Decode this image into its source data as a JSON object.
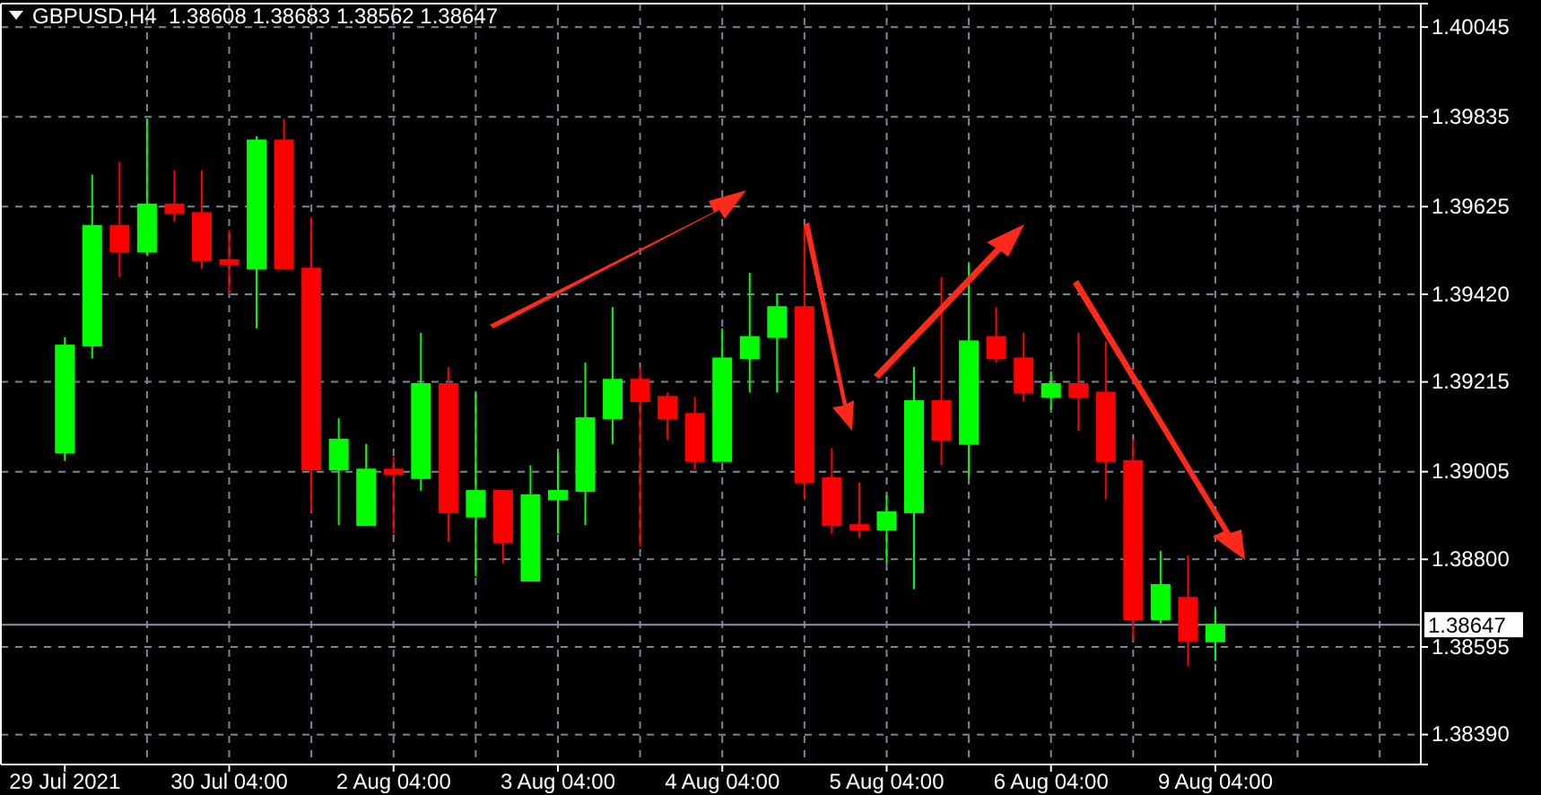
{
  "chart_data": {
    "type": "candlestick",
    "title": "GBPUSD,H4  1.38608 1.38683 1.38562 1.38647",
    "categories": [
      "29 Jul 2021",
      null,
      null,
      null,
      null,
      null,
      "30 Jul 04:00",
      null,
      null,
      null,
      null,
      null,
      "2 Aug 04:00",
      null,
      null,
      null,
      null,
      null,
      "3 Aug 04:00",
      null,
      null,
      null,
      null,
      null,
      "4 Aug 04:00",
      null,
      null,
      null,
      null,
      null,
      "5 Aug 04:00",
      null,
      null,
      null,
      null,
      null,
      "6 Aug 04:00",
      null,
      null,
      null,
      null,
      null,
      "9 Aug 04:00",
      null,
      null,
      null,
      null,
      null,
      null,
      null
    ],
    "ohlc": [
      [
        1.3905,
        1.3932,
        1.3903,
        1.393
      ],
      [
        1.393,
        1.397,
        1.3927,
        1.3958
      ],
      [
        1.3958,
        1.3973,
        1.3946,
        1.3952
      ],
      [
        1.3952,
        1.3983,
        1.3951,
        1.3963
      ],
      [
        1.3963,
        1.3971,
        1.3959,
        1.3961
      ],
      [
        1.3961,
        1.3971,
        1.3948,
        1.395
      ],
      [
        1.395,
        1.3957,
        1.3942,
        1.3949
      ],
      [
        1.3948,
        1.3979,
        1.3934,
        1.3978
      ],
      [
        1.3978,
        1.3983,
        1.3948,
        1.3948
      ],
      [
        1.3948,
        1.396,
        1.3891,
        1.3901
      ],
      [
        1.3901,
        1.3913,
        1.3888,
        1.3908
      ],
      [
        1.3888,
        1.3907,
        1.3888,
        1.3901
      ],
      [
        1.3901,
        1.3904,
        1.3886,
        1.39
      ],
      [
        1.3899,
        1.3933,
        1.3896,
        1.3921
      ],
      [
        1.3921,
        1.3925,
        1.3884,
        1.3891
      ],
      [
        1.389,
        1.3919,
        1.3876,
        1.3896
      ],
      [
        1.3896,
        1.3896,
        1.3879,
        1.3884
      ],
      [
        1.3875,
        1.3902,
        1.3875,
        1.3895
      ],
      [
        1.3894,
        1.3905,
        1.3886,
        1.3896
      ],
      [
        1.3896,
        1.3926,
        1.3888,
        1.3913
      ],
      [
        1.3913,
        1.3939,
        1.3907,
        1.3922
      ],
      [
        1.3922,
        1.3925,
        1.3883,
        1.3917
      ],
      [
        1.3918,
        1.3919,
        1.3908,
        1.3913
      ],
      [
        1.3914,
        1.3918,
        1.3901,
        1.3903
      ],
      [
        1.3903,
        1.3934,
        1.3903,
        1.3927
      ],
      [
        1.3927,
        1.3947,
        1.3919,
        1.3932
      ],
      [
        1.3932,
        1.3942,
        1.3919,
        1.3939
      ],
      [
        1.3939,
        1.3958,
        1.3894,
        1.3898
      ],
      [
        1.3899,
        1.3906,
        1.3886,
        1.3888
      ],
      [
        1.3888,
        1.3898,
        1.3885,
        1.3887
      ],
      [
        1.3887,
        1.3895,
        1.3879,
        1.3891
      ],
      [
        1.3891,
        1.3925,
        1.3873,
        1.3917
      ],
      [
        1.3917,
        1.3946,
        1.3902,
        1.3908
      ],
      [
        1.3907,
        1.3949,
        1.3899,
        1.3931
      ],
      [
        1.3932,
        1.3939,
        1.3926,
        1.3927
      ],
      [
        1.3927,
        1.3933,
        1.3917,
        1.3919
      ],
      [
        1.3918,
        1.3924,
        1.3915,
        1.3921
      ],
      [
        1.3921,
        1.3933,
        1.391,
        1.3918
      ],
      [
        1.3919,
        1.3931,
        1.3894,
        1.3903
      ],
      [
        1.3903,
        1.3908,
        1.3861,
        1.3866
      ],
      [
        1.3866,
        1.3882,
        1.3865,
        1.3874
      ],
      [
        1.3871,
        1.3881,
        1.3855,
        1.3861
      ],
      [
        1.38608,
        1.38683,
        1.38562,
        1.38647
      ],
      null,
      null,
      null,
      null,
      null,
      null,
      null
    ],
    "colors": [
      "#00ff00",
      "#00ff00",
      "#ff0000",
      "#00ff00",
      "#ff0000",
      "#ff0000",
      "#ff0000",
      "#00ff00",
      "#ff0000",
      "#ff0000",
      "#00ff00",
      "#00ff00",
      "#ff0000",
      "#00ff00",
      "#ff0000",
      "#00ff00",
      "#ff0000",
      "#00ff00",
      "#00ff00",
      "#00ff00",
      "#00ff00",
      "#ff0000",
      "#ff0000",
      "#ff0000",
      "#00ff00",
      "#00ff00",
      "#00ff00",
      "#ff0000",
      "#ff0000",
      "#ff0000",
      "#00ff00",
      "#00ff00",
      "#ff0000",
      "#00ff00",
      "#ff0000",
      "#ff0000",
      "#00ff00",
      "#ff0000",
      "#ff0000",
      "#ff0000",
      "#00ff00",
      "#ff0000",
      "#00ff00",
      null,
      null,
      null,
      null,
      null,
      null,
      null
    ],
    "ylim": [
      1.3832,
      1.401
    ],
    "yticks": [
      {
        "value": 1.40045,
        "label": "1.40045"
      },
      {
        "value": 1.39835,
        "label": "1.39835"
      },
      {
        "value": 1.39625,
        "label": "1.39625"
      },
      {
        "value": 1.3942,
        "label": "1.39420"
      },
      {
        "value": 1.39215,
        "label": "1.39215"
      },
      {
        "value": 1.39005,
        "label": "1.39005"
      },
      {
        "value": 1.388,
        "label": "1.38800"
      },
      {
        "value": 1.38595,
        "label": "1.38595"
      },
      {
        "value": 1.3839,
        "label": "1.38390"
      }
    ],
    "ref_lines": [
      {
        "axis": "y",
        "value": 1.38647,
        "label": "1.38647",
        "color": "#8899aa"
      }
    ],
    "grid": true
  }
}
